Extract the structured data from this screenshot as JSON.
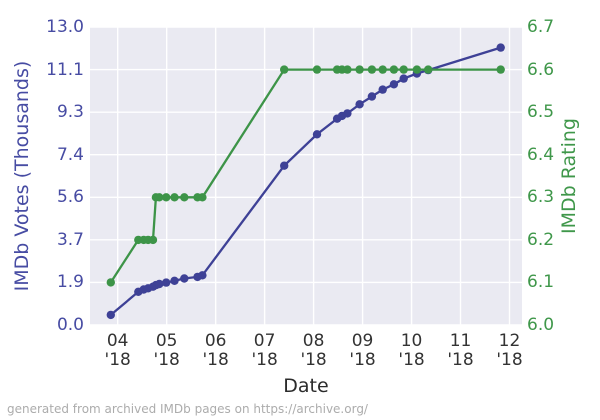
{
  "figure": {
    "footer": "generated from archived IMDb pages on https://archive.org/"
  },
  "chart_data": {
    "type": "line",
    "title": "",
    "xlabel": "Date",
    "grid": true,
    "legend": "none",
    "plot_bg_color": "#EAEAF2",
    "grid_color": "#FFFFFF",
    "xlim": [
      3.43,
      12.29
    ],
    "x_unit": "month of 2018 (fractional)",
    "x_axis": {
      "ticks": [
        {
          "month": 4,
          "line1": "04",
          "line2": "'18"
        },
        {
          "month": 5,
          "line1": "05",
          "line2": "'18"
        },
        {
          "month": 6,
          "line1": "06",
          "line2": "'18"
        },
        {
          "month": 7,
          "line1": "07",
          "line2": "'18"
        },
        {
          "month": 8,
          "line1": "08",
          "line2": "'18"
        },
        {
          "month": 9,
          "line1": "09",
          "line2": "'18"
        },
        {
          "month": 10,
          "line1": "10",
          "line2": "'18"
        },
        {
          "month": 11,
          "line1": "11",
          "line2": "'18"
        },
        {
          "month": 12,
          "line1": "12",
          "line2": "'18"
        }
      ]
    },
    "left_axis": {
      "label": "IMDb Votes (Thousands)",
      "ylim": [
        0,
        13
      ],
      "tick_labels": [
        "0.0",
        "1.9",
        "3.7",
        "5.6",
        "7.4",
        "9.3",
        "11.1",
        "13.0"
      ],
      "text_color": "#474CA3"
    },
    "right_axis": {
      "label": "IMDb Rating",
      "ylim": [
        6.0,
        6.7
      ],
      "tick_labels": [
        "6.0",
        "6.1",
        "6.2",
        "6.3",
        "6.4",
        "6.5",
        "6.6",
        "6.7"
      ],
      "text_color": "#3F974A"
    },
    "x": [
      3.86,
      4.42,
      4.53,
      4.62,
      4.72,
      4.78,
      4.85,
      4.99,
      5.16,
      5.36,
      5.63,
      5.73,
      7.4,
      8.07,
      8.48,
      8.58,
      8.69,
      8.94,
      9.19,
      9.41,
      9.64,
      9.84,
      10.11,
      10.34,
      11.82
    ],
    "series": [
      {
        "name": "IMDb Votes (Thousands)",
        "axis": "left",
        "color": "#3E4196",
        "values": [
          0.44,
          1.45,
          1.55,
          1.6,
          1.67,
          1.74,
          1.79,
          1.85,
          1.93,
          2.03,
          2.1,
          2.17,
          6.95,
          8.32,
          9.0,
          9.12,
          9.23,
          9.63,
          9.97,
          10.27,
          10.5,
          10.75,
          10.97,
          11.12,
          12.1
        ]
      },
      {
        "name": "IMDb Rating",
        "axis": "right",
        "color": "#3D9448",
        "values": [
          6.1,
          6.2,
          6.2,
          6.2,
          6.2,
          6.3,
          6.3,
          6.3,
          6.3,
          6.3,
          6.3,
          6.3,
          6.6,
          6.6,
          6.6,
          6.6,
          6.6,
          6.6,
          6.6,
          6.6,
          6.6,
          6.6,
          6.6,
          6.6,
          6.6
        ]
      }
    ]
  }
}
